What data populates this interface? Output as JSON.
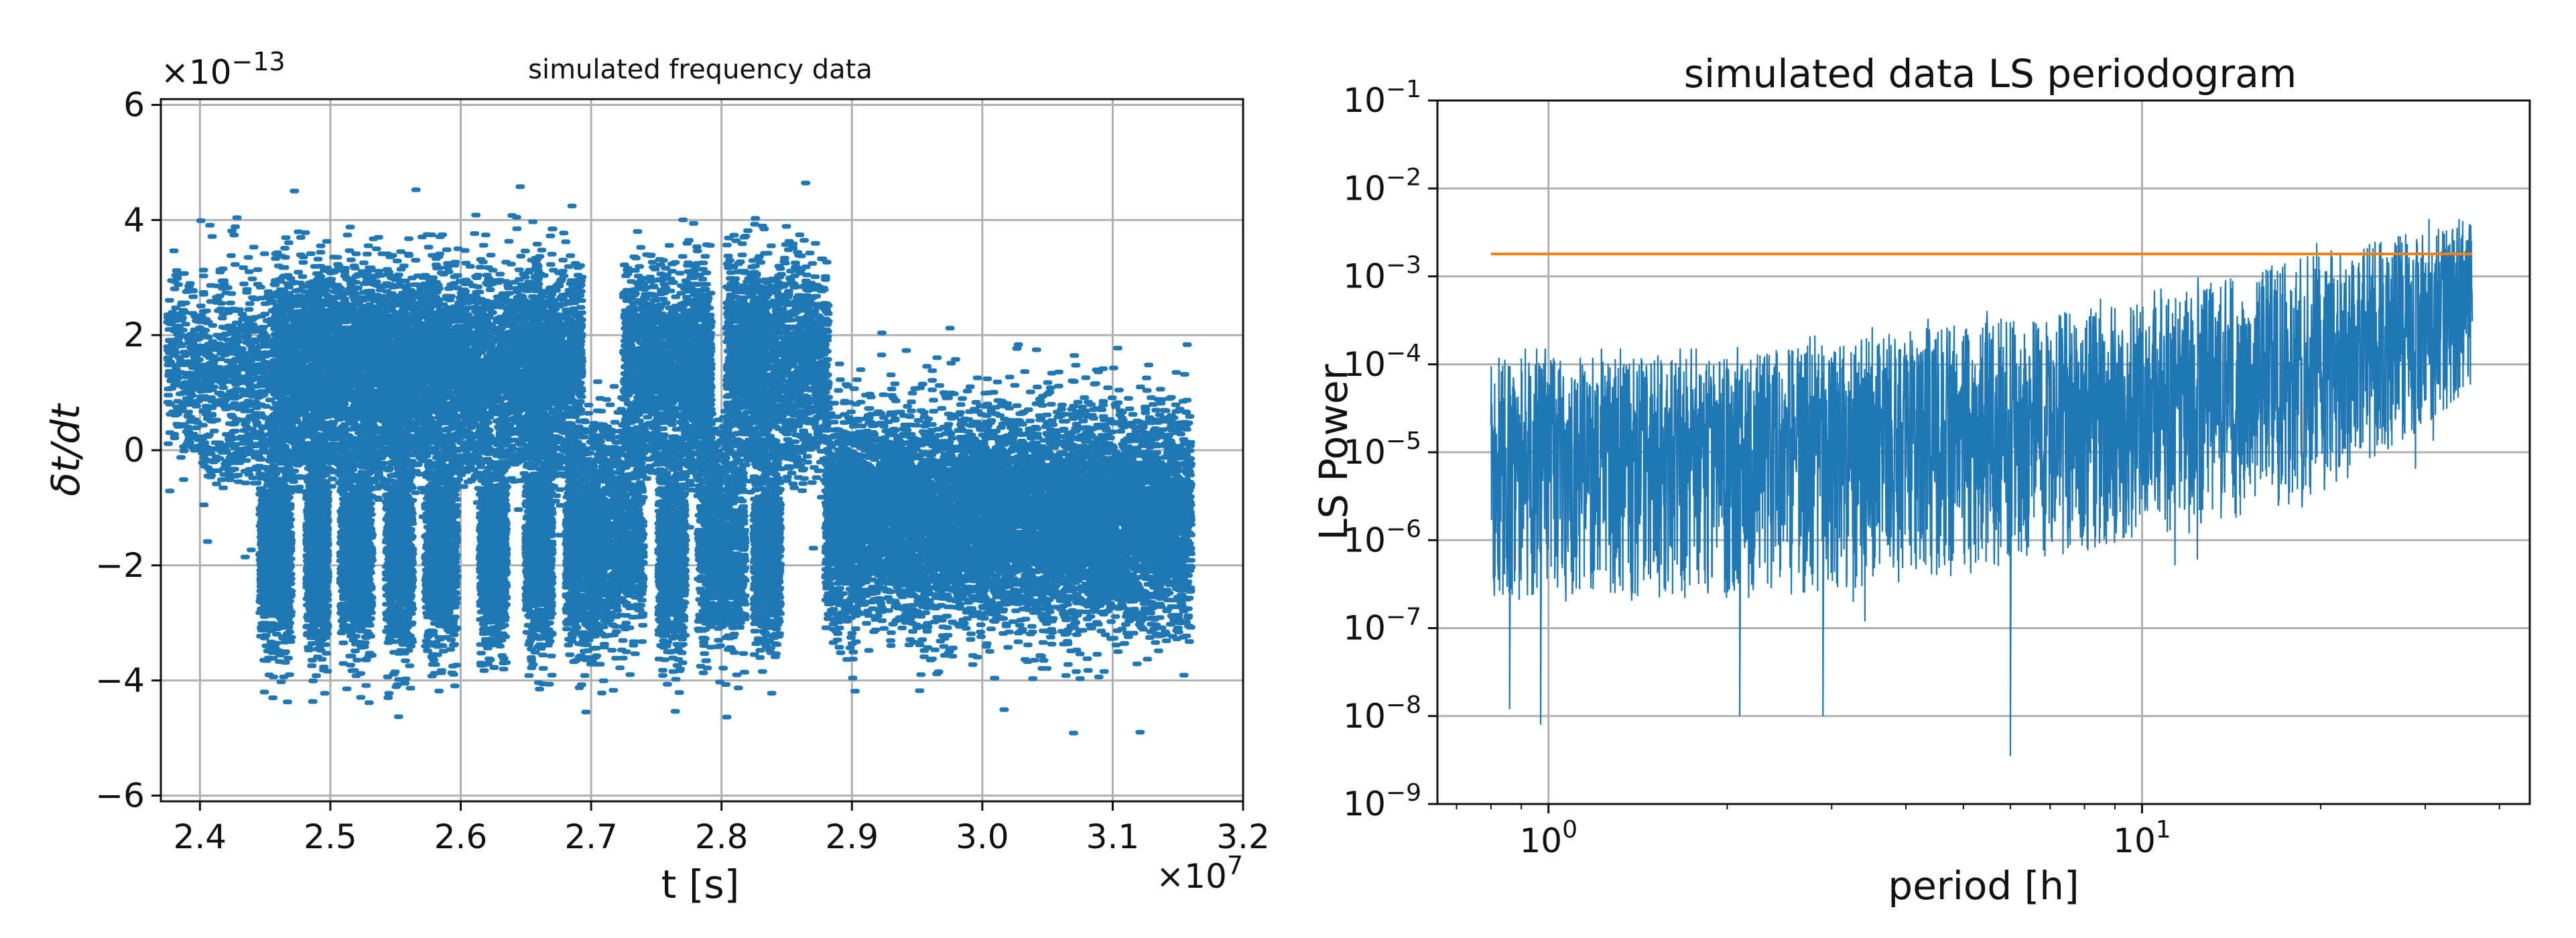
{
  "chart_data": [
    {
      "type": "scatter",
      "title": "simulated frequency data",
      "xlabel": "t [s]",
      "ylabel": "δt/dt",
      "x_multiplier": "×10",
      "x_multiplier_exp": "7",
      "y_multiplier": "×10",
      "y_multiplier_exp": "−13",
      "xlim": [
        2.37,
        3.2
      ],
      "ylim": [
        -6.1,
        6.1
      ],
      "x_ticks": [
        2.4,
        2.5,
        2.6,
        2.7,
        2.8,
        2.9,
        3.0,
        3.1,
        3.2
      ],
      "x_tick_labels": [
        "2.4",
        "2.5",
        "2.6",
        "2.7",
        "2.8",
        "2.9",
        "3.0",
        "3.1",
        "3.2"
      ],
      "y_ticks": [
        -6,
        -4,
        -2,
        0,
        2,
        4,
        6
      ],
      "y_tick_labels": [
        "−6",
        "−4",
        "−2",
        "0",
        "2",
        "4",
        "6"
      ],
      "grid": true,
      "color": "#1f77b4",
      "series": [
        {
          "name": "simulated frequency data",
          "segments": [
            {
              "x": [
                2.4,
                2.87
              ],
              "description": "alternating clusters",
              "clusters": [
                {
                  "x": 2.42,
                  "w": 0.045,
                  "center": 1.5,
                  "sd": 0.8
                },
                {
                  "x": 2.458,
                  "w": 0.012,
                  "center": -1.8,
                  "sd": 0.8
                },
                {
                  "x": 2.475,
                  "w": 0.018,
                  "center": 1.5,
                  "sd": 0.8
                },
                {
                  "x": 2.49,
                  "w": 0.008,
                  "center": -1.8,
                  "sd": 0.8
                },
                {
                  "x": 2.505,
                  "w": 0.018,
                  "center": 1.5,
                  "sd": 0.8
                },
                {
                  "x": 2.52,
                  "w": 0.012,
                  "center": -1.8,
                  "sd": 0.8
                },
                {
                  "x": 2.54,
                  "w": 0.016,
                  "center": 1.5,
                  "sd": 0.8
                },
                {
                  "x": 2.553,
                  "w": 0.01,
                  "center": -1.8,
                  "sd": 0.8
                },
                {
                  "x": 2.57,
                  "w": 0.015,
                  "center": 1.5,
                  "sd": 0.8
                },
                {
                  "x": 2.585,
                  "w": 0.012,
                  "center": -1.8,
                  "sd": 0.8
                },
                {
                  "x": 2.605,
                  "w": 0.02,
                  "center": 1.5,
                  "sd": 0.8
                },
                {
                  "x": 2.625,
                  "w": 0.01,
                  "center": -1.8,
                  "sd": 0.8
                },
                {
                  "x": 2.645,
                  "w": 0.018,
                  "center": 1.5,
                  "sd": 0.8
                },
                {
                  "x": 2.66,
                  "w": 0.01,
                  "center": -1.8,
                  "sd": 0.8
                },
                {
                  "x": 2.675,
                  "w": 0.018,
                  "center": 1.5,
                  "sd": 0.8
                },
                {
                  "x": 2.693,
                  "w": 0.012,
                  "center": -1.8,
                  "sd": 0.8
                },
                {
                  "x": 2.72,
                  "w": 0.02,
                  "center": -1.6,
                  "sd": 0.9
                },
                {
                  "x": 2.745,
                  "w": 0.02,
                  "center": 1.6,
                  "sd": 0.8
                },
                {
                  "x": 2.762,
                  "w": 0.01,
                  "center": -1.8,
                  "sd": 0.8
                },
                {
                  "x": 2.78,
                  "w": 0.012,
                  "center": 1.5,
                  "sd": 0.8
                },
                {
                  "x": 2.8,
                  "w": 0.018,
                  "center": -1.8,
                  "sd": 0.8
                },
                {
                  "x": 2.82,
                  "w": 0.016,
                  "center": 1.6,
                  "sd": 0.8
                },
                {
                  "x": 2.835,
                  "w": 0.01,
                  "center": -1.8,
                  "sd": 0.8
                },
                {
                  "x": 2.86,
                  "w": 0.022,
                  "center": 1.6,
                  "sd": 0.8
                }
              ]
            },
            {
              "x": [
                2.88,
                3.16
              ],
              "description": "dense band",
              "center": -1.2,
              "sd": 0.9
            }
          ]
        }
      ]
    },
    {
      "type": "line",
      "title": "simulated data LS periodogram",
      "xlabel": "period [h]",
      "ylabel": "LS Power",
      "xscale": "log",
      "yscale": "log",
      "xlim": [
        0.65,
        45
      ],
      "ylim": [
        1e-09,
        0.1
      ],
      "x_ticks": [
        1,
        10
      ],
      "x_tick_labels": [
        {
          "base": "10",
          "exp": "0"
        },
        {
          "base": "10",
          "exp": "1"
        }
      ],
      "y_ticks": [
        1e-09,
        1e-08,
        1e-07,
        1e-06,
        1e-05,
        0.0001,
        0.001,
        0.01,
        0.1
      ],
      "y_tick_labels": [
        {
          "base": "10",
          "exp": "−9"
        },
        {
          "base": "10",
          "exp": "−8"
        },
        {
          "base": "10",
          "exp": "−7"
        },
        {
          "base": "10",
          "exp": "−6"
        },
        {
          "base": "10",
          "exp": "−5"
        },
        {
          "base": "10",
          "exp": "−4"
        },
        {
          "base": "10",
          "exp": "−3"
        },
        {
          "base": "10",
          "exp": "−2"
        },
        {
          "base": "10",
          "exp": "−1"
        }
      ],
      "grid": true,
      "series": [
        {
          "name": "LS power",
          "color": "#1f77b4",
          "x_range": [
            0.8,
            36
          ],
          "envelope": [
            {
              "x": 0.8,
              "median": 1.2e-05,
              "low": 2e-07,
              "high": 0.00012
            },
            {
              "x": 2.0,
              "median": 1.2e-05,
              "low": 2e-07,
              "high": 0.00012
            },
            {
              "x": 5.0,
              "median": 2e-05,
              "low": 4e-07,
              "high": 0.0003
            },
            {
              "x": 10.0,
              "median": 4e-05,
              "low": 1e-06,
              "high": 0.0005
            },
            {
              "x": 20.0,
              "median": 8e-05,
              "low": 3e-06,
              "high": 0.002
            },
            {
              "x": 33.0,
              "median": 0.0006,
              "low": 3e-05,
              "high": 0.004
            },
            {
              "x": 36.0,
              "median": 0.001,
              "low": 5e-05,
              "high": 0.003
            }
          ],
          "notable_minima": [
            {
              "x": 6.0,
              "y": 3.5e-09
            },
            {
              "x": 0.97,
              "y": 8e-09
            },
            {
              "x": 0.86,
              "y": 1.2e-08
            },
            {
              "x": 2.1,
              "y": 1e-08
            },
            {
              "x": 2.9,
              "y": 1e-08
            }
          ]
        },
        {
          "name": "threshold",
          "color": "#ff7f0e",
          "x": [
            0.8,
            36
          ],
          "y": [
            0.0018,
            0.0018
          ]
        }
      ]
    }
  ]
}
